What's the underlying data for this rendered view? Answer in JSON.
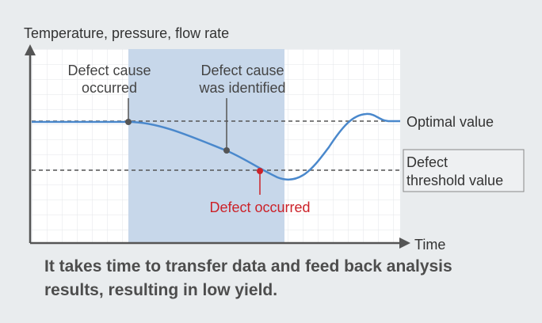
{
  "chart_data": {
    "type": "line",
    "title": "",
    "ylabel": "Temperature, pressure, flow rate",
    "xlabel": "Time",
    "reference_lines": {
      "optimal": {
        "label": "Optimal value"
      },
      "threshold": {
        "label_line1": "Defect",
        "label_line2": "threshold value"
      }
    },
    "annotations": {
      "cause_occurred": {
        "line1": "Defect cause",
        "line2": "occurred"
      },
      "cause_identified": {
        "line1": "Defect cause",
        "line2": "was identified"
      },
      "defect_occurred": {
        "label": "Defect occurred"
      }
    },
    "shaded_region": "from defect cause occurred until analysis completed",
    "colors": {
      "curve": "#4a88cc",
      "shade": "#c7d7ea",
      "defect": "#cc2229",
      "marker": "#555555",
      "axis": "#555555"
    }
  },
  "caption": {
    "line1": "It takes time to transfer data and feed back analysis",
    "line2": "results, resulting in low yield."
  }
}
